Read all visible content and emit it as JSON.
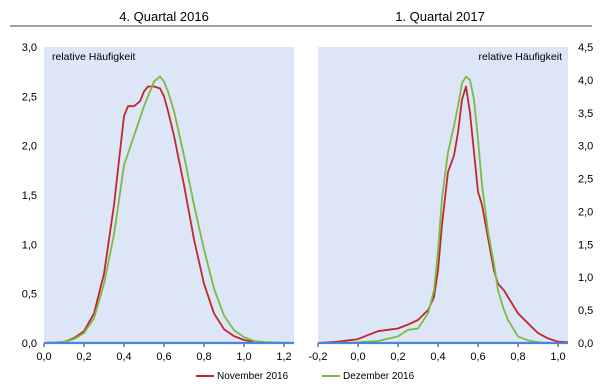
{
  "chart_data": [
    {
      "type": "line",
      "title": "4. Quartal 2016",
      "ylabel": "relative Häufigkeit",
      "xlim": [
        0.0,
        1.25
      ],
      "ylim": [
        0.0,
        3.0
      ],
      "x_ticks": [
        "0,0",
        "0,2",
        "0,4",
        "0,6",
        "0,8",
        "1,0",
        "1,2"
      ],
      "y_ticks": [
        "0,0",
        "0,5",
        "1,0",
        "1,5",
        "2,0",
        "2,5",
        "3,0"
      ],
      "grid": false,
      "series": [
        {
          "name": "November 2016",
          "color": "#c0272d",
          "x": [
            0.0,
            0.1,
            0.15,
            0.2,
            0.25,
            0.3,
            0.35,
            0.4,
            0.42,
            0.45,
            0.48,
            0.5,
            0.52,
            0.55,
            0.58,
            0.6,
            0.62,
            0.65,
            0.7,
            0.75,
            0.8,
            0.85,
            0.9,
            0.95,
            1.0,
            1.05,
            1.1,
            1.25
          ],
          "y": [
            0.0,
            0.01,
            0.05,
            0.12,
            0.3,
            0.7,
            1.4,
            2.3,
            2.4,
            2.4,
            2.45,
            2.55,
            2.6,
            2.6,
            2.58,
            2.5,
            2.35,
            2.1,
            1.6,
            1.05,
            0.6,
            0.3,
            0.14,
            0.07,
            0.03,
            0.01,
            0.0,
            0.0
          ]
        },
        {
          "name": "Dezember 2016",
          "color": "#7bbb44",
          "x": [
            0.0,
            0.1,
            0.15,
            0.2,
            0.25,
            0.3,
            0.35,
            0.4,
            0.45,
            0.5,
            0.55,
            0.58,
            0.6,
            0.62,
            0.65,
            0.7,
            0.75,
            0.8,
            0.85,
            0.9,
            0.95,
            1.0,
            1.05,
            1.1,
            1.25
          ],
          "y": [
            0.0,
            0.01,
            0.04,
            0.1,
            0.25,
            0.6,
            1.1,
            1.8,
            2.1,
            2.4,
            2.65,
            2.7,
            2.65,
            2.55,
            2.35,
            1.9,
            1.4,
            0.95,
            0.55,
            0.28,
            0.13,
            0.06,
            0.02,
            0.01,
            0.0
          ]
        }
      ]
    },
    {
      "type": "line",
      "title": "1. Quartal 2017",
      "ylabel": "relative Häufigkeit",
      "xlim": [
        -0.2,
        1.05
      ],
      "ylim": [
        0.0,
        4.5
      ],
      "x_ticks": [
        "-0,2",
        "0,0",
        "0,2",
        "0,4",
        "0,6",
        "0,8",
        "1,0"
      ],
      "y_ticks": [
        "0,0",
        "0,5",
        "1,0",
        "1,5",
        "2,0",
        "2,5",
        "3,0",
        "3,5",
        "4,0",
        "4,5"
      ],
      "grid": false,
      "series": [
        {
          "name": "November 2016",
          "color": "#c0272d",
          "x": [
            -0.2,
            -0.1,
            0.0,
            0.05,
            0.1,
            0.15,
            0.2,
            0.25,
            0.3,
            0.35,
            0.38,
            0.4,
            0.42,
            0.45,
            0.48,
            0.5,
            0.52,
            0.54,
            0.56,
            0.58,
            0.6,
            0.62,
            0.65,
            0.68,
            0.7,
            0.73,
            0.75,
            0.8,
            0.85,
            0.9,
            0.95,
            1.0,
            1.05
          ],
          "y": [
            0.0,
            0.02,
            0.06,
            0.12,
            0.18,
            0.2,
            0.22,
            0.28,
            0.35,
            0.5,
            0.7,
            1.1,
            1.8,
            2.6,
            2.85,
            3.2,
            3.7,
            3.9,
            3.5,
            2.9,
            2.3,
            2.1,
            1.6,
            1.1,
            0.9,
            0.8,
            0.7,
            0.45,
            0.3,
            0.15,
            0.07,
            0.02,
            0.01
          ]
        },
        {
          "name": "Dezember 2016",
          "color": "#7bbb44",
          "x": [
            -0.2,
            -0.1,
            0.0,
            0.1,
            0.2,
            0.25,
            0.3,
            0.35,
            0.38,
            0.4,
            0.42,
            0.45,
            0.48,
            0.5,
            0.52,
            0.54,
            0.56,
            0.58,
            0.6,
            0.62,
            0.65,
            0.68,
            0.7,
            0.73,
            0.75,
            0.78,
            0.8,
            0.85,
            0.9,
            0.95,
            1.0,
            1.05
          ],
          "y": [
            0.0,
            0.0,
            0.01,
            0.03,
            0.1,
            0.2,
            0.22,
            0.45,
            0.8,
            1.4,
            2.2,
            2.9,
            3.3,
            3.6,
            3.95,
            4.05,
            4.0,
            3.7,
            3.1,
            2.4,
            1.7,
            1.2,
            0.8,
            0.5,
            0.35,
            0.2,
            0.1,
            0.04,
            0.01,
            0.0,
            0.0,
            0.0
          ]
        }
      ]
    }
  ],
  "legend": [
    {
      "label": "November 2016",
      "color": "#c0272d"
    },
    {
      "label": "Dezember 2016",
      "color": "#7bbb44"
    }
  ],
  "colors": {
    "plot_background": "#dde6f7",
    "axis_line": "#4a86d8"
  }
}
